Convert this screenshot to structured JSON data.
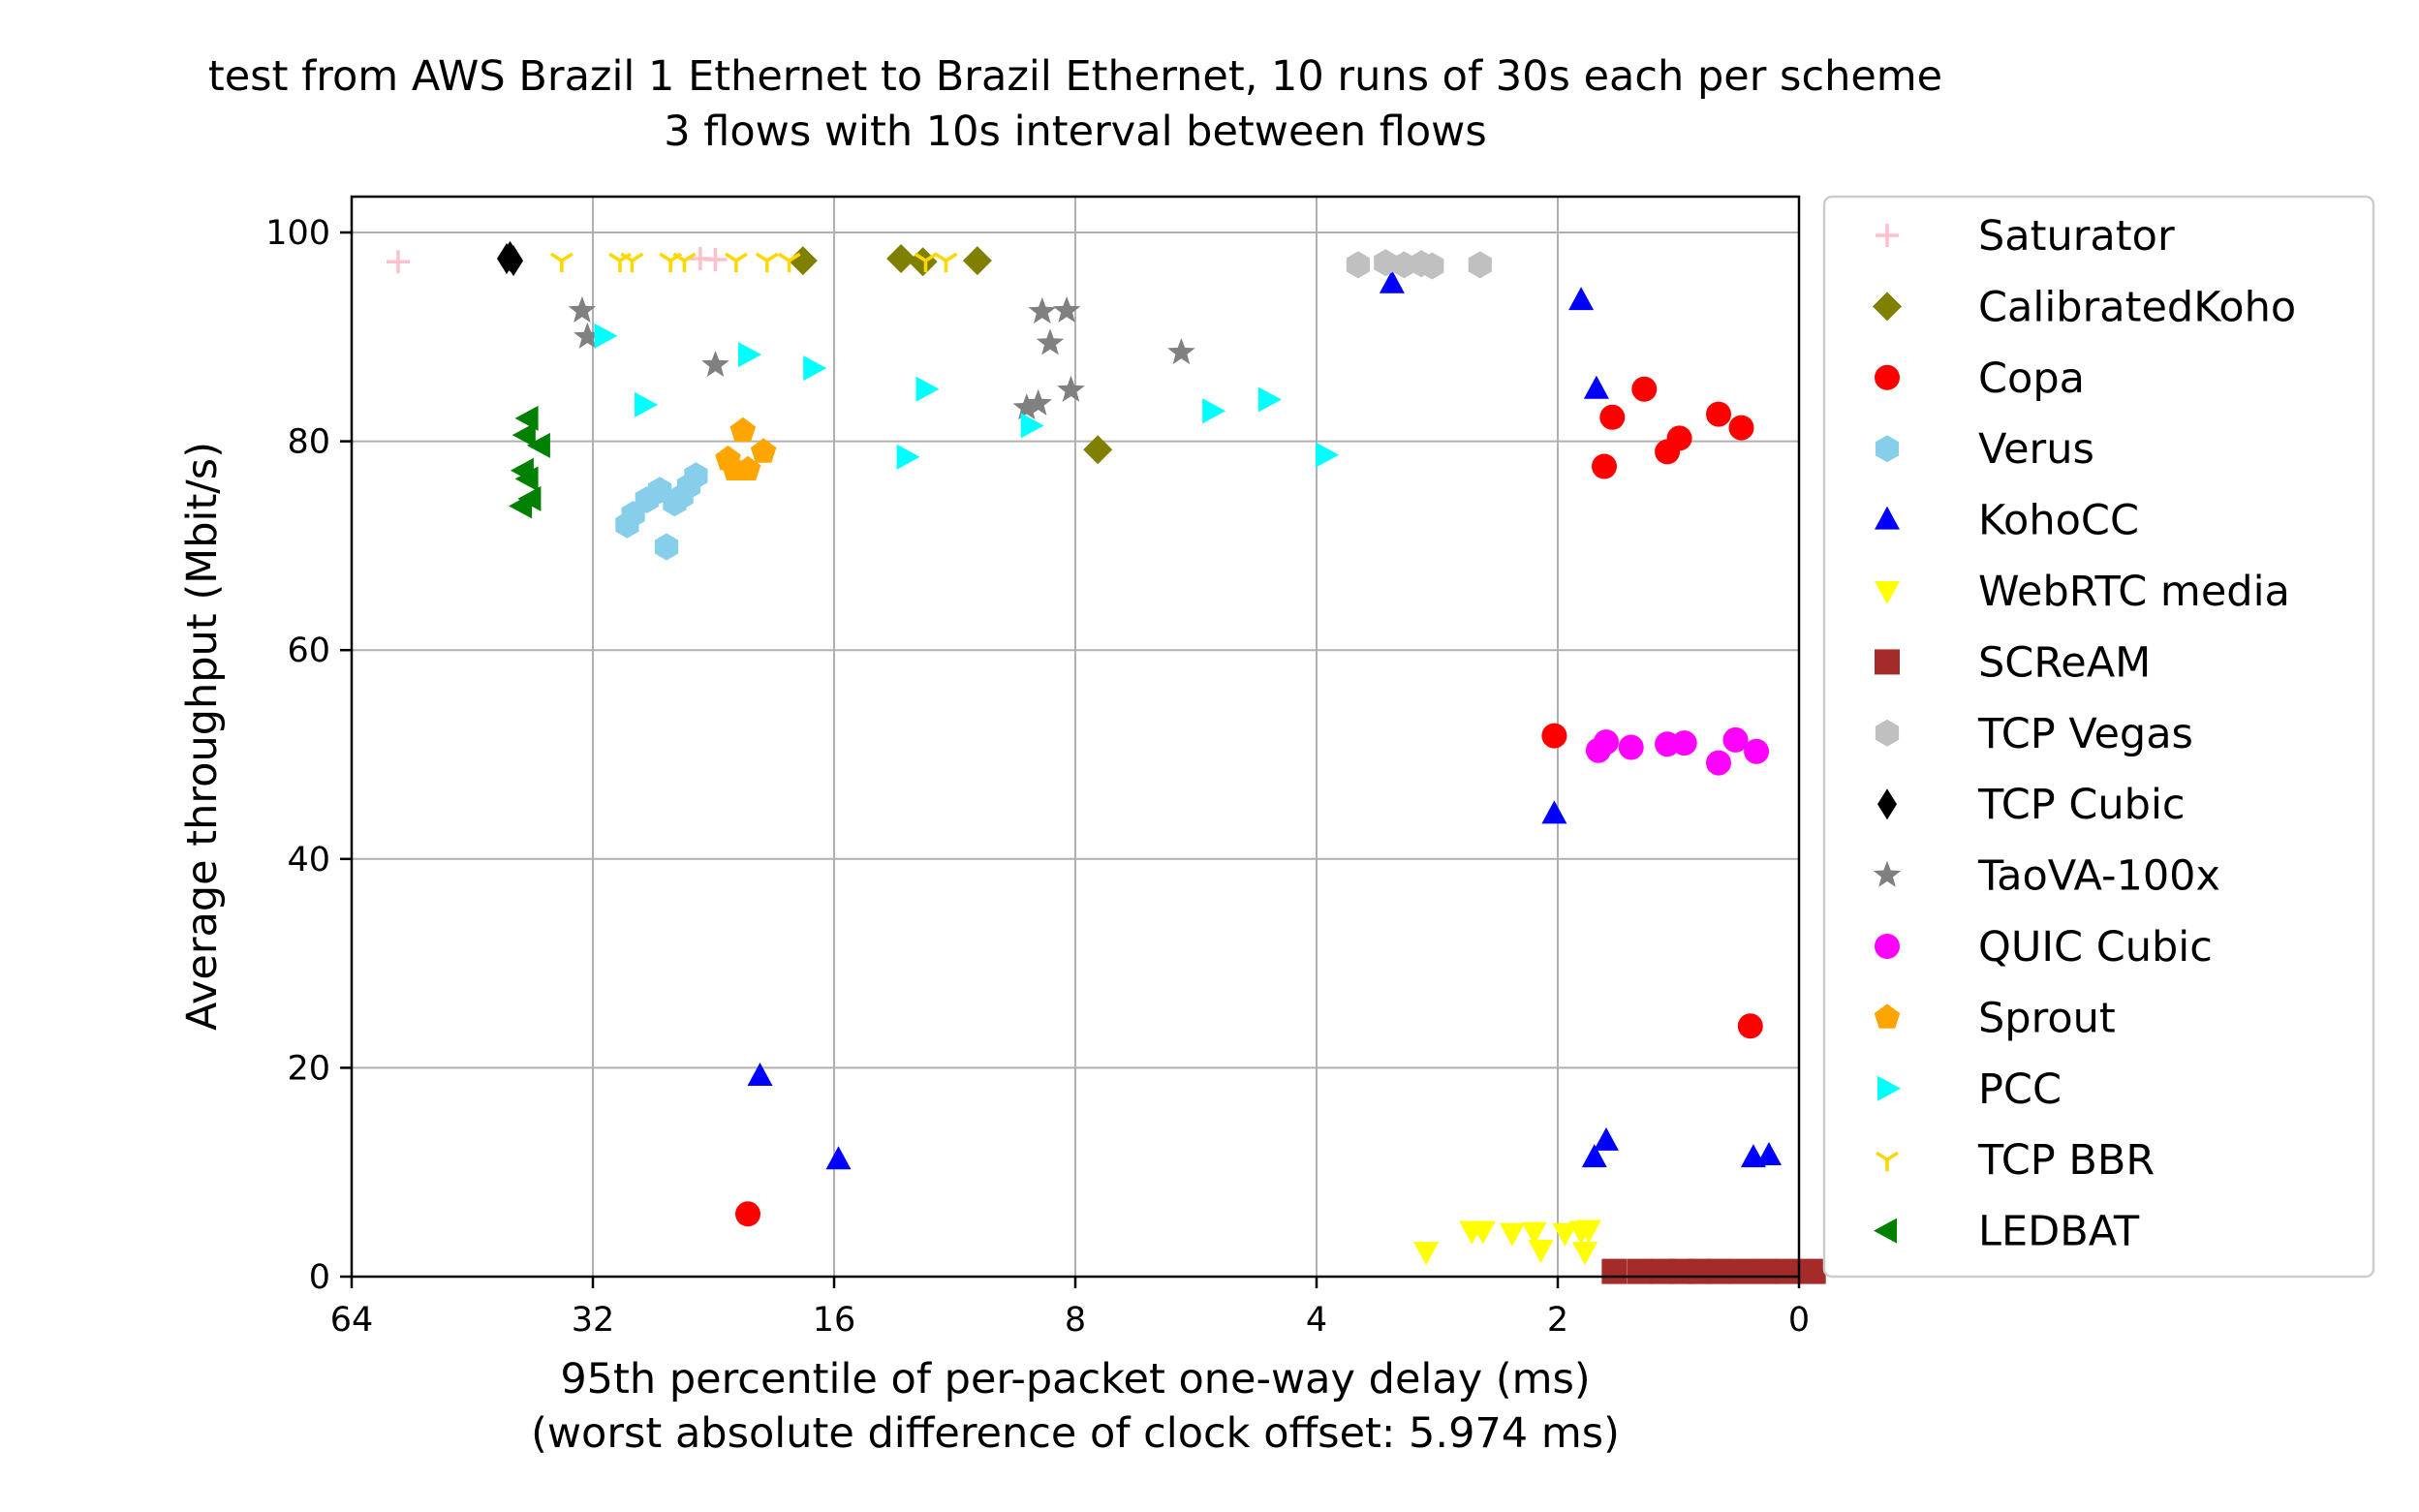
{
  "chart_data": {
    "type": "scatter",
    "title": "test from AWS Brazil 1 Ethernet to Brazil Ethernet, 10 runs of 30s each per scheme",
    "subtitle": "3 flows with 10s interval between flows",
    "xlabel": "95th percentile of per-packet one-way delay (ms)",
    "xlabel2": "(worst absolute difference of clock offset: 5.974 ms)",
    "ylabel": "Average throughput (Mbit/s)",
    "x_scale": "log2, inverted",
    "x_ticks": [
      "64",
      "32",
      "16",
      "8",
      "4",
      "2",
      "0"
    ],
    "y_ticks": [
      "0",
      "20",
      "40",
      "60",
      "80",
      "100"
    ],
    "ylim": [
      0,
      104
    ],
    "grid": true,
    "legend_position": "outside-right",
    "series": [
      {
        "name": "Saturator",
        "marker": "plus",
        "color": "#ffc0cb",
        "points": [
          [
            56,
            97.2
          ],
          [
            23.5,
            97.5
          ],
          [
            22.5,
            97.4
          ]
        ]
      },
      {
        "name": "CalibratedKoho",
        "marker": "diamond",
        "color": "#808000",
        "points": [
          [
            17.5,
            97.3
          ],
          [
            13.2,
            97.5
          ],
          [
            12.4,
            97.2
          ],
          [
            10.6,
            97.3
          ],
          [
            7.5,
            79.2
          ]
        ]
      },
      {
        "name": "Copa",
        "marker": "circle",
        "color": "#ff0000",
        "points": [
          [
            1.56,
            85.0
          ],
          [
            1.71,
            82.3
          ],
          [
            1.26,
            82.6
          ],
          [
            1.18,
            81.3
          ],
          [
            1.41,
            80.3
          ],
          [
            1.46,
            79.0
          ],
          [
            1.75,
            77.6
          ],
          [
            2.02,
            51.8
          ],
          [
            1.15,
            24.0
          ],
          [
            20.5,
            6.0
          ]
        ]
      },
      {
        "name": "Verus",
        "marker": "hexagon",
        "color": "#87ceeb",
        "points": [
          [
            29.0,
            72.0
          ],
          [
            28.5,
            73.0
          ],
          [
            27.4,
            74.4
          ],
          [
            26.4,
            75.3
          ],
          [
            25.3,
            74.1
          ],
          [
            24.8,
            74.7
          ],
          [
            24.3,
            75.7
          ],
          [
            23.8,
            76.7
          ],
          [
            25.9,
            69.9
          ]
        ]
      },
      {
        "name": "KohoCC",
        "marker": "triangle-up",
        "color": "#0000ff",
        "points": [
          [
            3.22,
            95.1
          ],
          [
            1.87,
            93.5
          ],
          [
            1.79,
            85.0
          ],
          [
            2.02,
            44.3
          ],
          [
            19.8,
            19.2
          ],
          [
            15.8,
            11.2
          ],
          [
            1.74,
            13.0
          ],
          [
            1.8,
            11.4
          ],
          [
            1.14,
            11.4
          ],
          [
            1.09,
            11.6
          ]
        ]
      },
      {
        "name": "WebRTC media",
        "marker": "triangle-down",
        "color": "#ffff00",
        "points": [
          [
            2.92,
            2.4
          ],
          [
            2.56,
            4.4
          ],
          [
            2.48,
            4.4
          ],
          [
            2.28,
            4.2
          ],
          [
            2.14,
            4.3
          ],
          [
            1.96,
            4.2
          ],
          [
            1.87,
            4.4
          ],
          [
            1.83,
            4.5
          ],
          [
            2.1,
            2.6
          ],
          [
            1.85,
            2.4
          ]
        ]
      },
      {
        "name": "SCReAM",
        "marker": "square",
        "color": "#a52a2a",
        "points": [
          [
            1.7,
            0.5
          ],
          [
            1.58,
            0.5
          ],
          [
            1.48,
            0.5
          ],
          [
            1.4,
            0.5
          ],
          [
            1.33,
            0.5
          ],
          [
            1.26,
            0.5
          ],
          [
            1.18,
            0.5
          ],
          [
            1.1,
            0.5
          ],
          [
            1.03,
            0.5
          ],
          [
            0.96,
            0.5
          ]
        ]
      },
      {
        "name": "TCP Vegas",
        "marker": "hexagon",
        "color": "#c0c0c0",
        "points": [
          [
            3.55,
            96.9
          ],
          [
            3.28,
            97.1
          ],
          [
            3.11,
            96.9
          ],
          [
            2.96,
            97.0
          ],
          [
            2.87,
            96.8
          ],
          [
            2.5,
            96.9
          ]
        ]
      },
      {
        "name": "TCP Cubic",
        "marker": "thin-diamond",
        "color": "#000000",
        "points": [
          [
            41.0,
            97.5
          ],
          [
            40.6,
            97.7
          ],
          [
            40.2,
            97.3
          ]
        ]
      },
      {
        "name": "TaoVA-100x",
        "marker": "star",
        "color": "#808080",
        "points": [
          [
            33.0,
            92.5
          ],
          [
            32.5,
            90.0
          ],
          [
            22.5,
            87.3
          ],
          [
            8.8,
            92.4
          ],
          [
            8.6,
            89.4
          ],
          [
            8.2,
            92.5
          ],
          [
            8.1,
            84.9
          ],
          [
            9.2,
            83.2
          ],
          [
            8.9,
            83.6
          ],
          [
            5.9,
            88.5
          ]
        ]
      },
      {
        "name": "QUIC Cubic",
        "marker": "circle",
        "color": "#ff00ff",
        "points": [
          [
            1.78,
            50.4
          ],
          [
            1.74,
            51.2
          ],
          [
            1.62,
            50.7
          ],
          [
            1.46,
            51.0
          ],
          [
            1.39,
            51.1
          ],
          [
            1.26,
            49.2
          ],
          [
            1.2,
            51.4
          ],
          [
            1.13,
            50.3
          ]
        ]
      },
      {
        "name": "Sprout",
        "marker": "pentagon",
        "color": "#ffa500",
        "points": [
          [
            21.7,
            78.3
          ],
          [
            21.3,
            77.3
          ],
          [
            20.5,
            77.3
          ],
          [
            20.8,
            81.0
          ],
          [
            19.6,
            79.0
          ]
        ]
      },
      {
        "name": "PCC",
        "marker": "triangle-right",
        "color": "#00ffff",
        "points": [
          [
            31.0,
            90.1
          ],
          [
            27.6,
            83.5
          ],
          [
            20.5,
            88.3
          ],
          [
            17.0,
            87.0
          ],
          [
            13.0,
            78.5
          ],
          [
            12.3,
            85.0
          ],
          [
            9.1,
            81.5
          ],
          [
            5.4,
            82.9
          ],
          [
            4.6,
            84.0
          ],
          [
            3.9,
            78.7
          ]
        ]
      },
      {
        "name": "TCP BBR",
        "marker": "tri-down",
        "color": "#ffd700",
        "points": [
          [
            35.0,
            97.3
          ],
          [
            29.6,
            97.3
          ],
          [
            28.6,
            97.3
          ],
          [
            25.6,
            97.3
          ],
          [
            24.6,
            97.3
          ],
          [
            21.2,
            97.3
          ],
          [
            19.4,
            97.3
          ],
          [
            18.2,
            97.3
          ],
          [
            12.3,
            97.3
          ],
          [
            11.6,
            97.3
          ]
        ]
      },
      {
        "name": "LEDBAT",
        "marker": "triangle-left",
        "color": "#008000",
        "points": [
          [
            38.5,
            82.2
          ],
          [
            38.8,
            80.6
          ],
          [
            37.2,
            79.6
          ],
          [
            39.0,
            77.2
          ],
          [
            38.5,
            76.4
          ],
          [
            38.2,
            74.5
          ],
          [
            39.2,
            73.8
          ]
        ]
      }
    ]
  }
}
